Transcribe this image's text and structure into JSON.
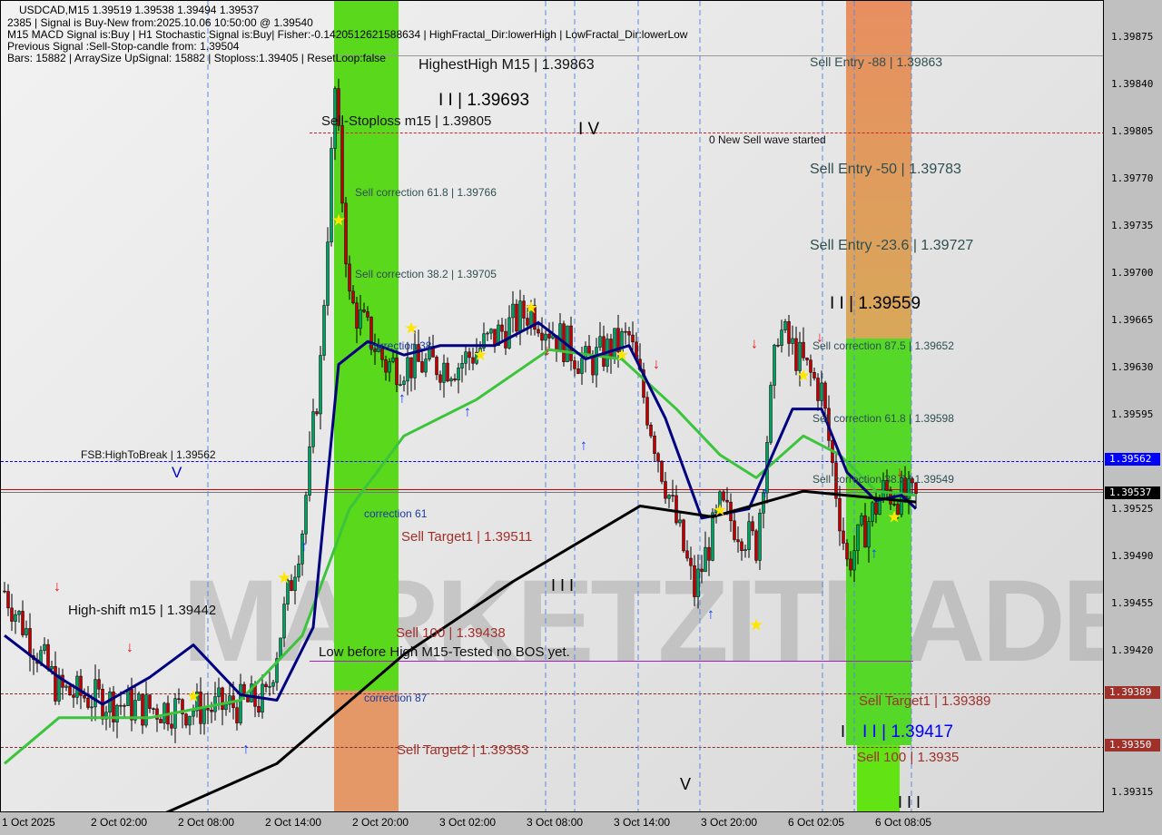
{
  "header": {
    "symbol_line": "USDCAD,M15  1.39519 1.39538 1.39494 1.39537",
    "signal_line": "2385 | Signal is Buy-New from:2025.10.06 10:50:00 @ 1.39540",
    "indicator_line": "M15 MACD Signal is:Buy | H1 Stochastic Signal is:Buy| Fisher:-0.1420512621588634 | HighFractal_Dir:lowerHigh | LowFractal_Dir:lowerLow",
    "previous_line": "Previous Signal :Sell-Stop-candle from: 1.39504",
    "bars_line": "Bars: 15882 | ArraySize UpSignal: 15882 | Stoploss:1.39405 | ResetLoop:false"
  },
  "watermark": "MARKETZITRADE",
  "labels": {
    "highest_high": "HighestHigh   M15 | 1.39863",
    "sell_stoploss": "Sell-Stoploss m15 | 1.39805",
    "wave_1_39693": "I I | 1.39693",
    "wave_iv": "I V",
    "new_sell_wave": "0 New Sell wave started",
    "sell_corr_618_top": "Sell correction 61.8 | 1.39766",
    "sell_corr_382_top": "Sell correction 38.2 | 1.39705",
    "correction_38": "correction 38",
    "fsb": "FSB:HighToBreak | 1.39562",
    "wave_v_left": "V",
    "correction_61": "correction 61",
    "sell_target1_mid": "Sell Target1 | 1.39511",
    "wave_iii_mid": "I I I",
    "high_shift": "High-shift m15 | 1.39442",
    "sell_100_mid": "Sell 100 | 1.39438",
    "low_before_high": "Low before High  M15-Tested no BOS yet.",
    "correction_87": "correction 87",
    "sell_target2": "Sell Target2 | 1.39353",
    "wave_v_bottom": "V",
    "sell_entry_88": "Sell Entry -88 | 1.39863",
    "sell_entry_50": "Sell Entry -50 | 1.39783",
    "sell_entry_236": "Sell Entry -23.6 | 1.39727",
    "wave_ii_1_39559": "I I | 1.39559",
    "sell_corr_875": "Sell correction 87.5 | 1.39652",
    "sell_corr_618_right": "Sell correction 61.8 | 1.39598",
    "sell_corr_382_right": "Sell correction 38.2 | 1.39549",
    "sell_target1_right": "Sell Target1 | 1.39389",
    "wave_i": "I",
    "wave_iii_1_39417": "I I | 1.39417",
    "sell_100_right": "Sell 100 | 1.3935",
    "wave_iii_bottom": "I I I"
  },
  "chart_data": {
    "type": "candlestick",
    "symbol": "USDCAD",
    "timeframe": "M15",
    "ylim": [
      1.393,
      1.399
    ],
    "y_ticks": [
      "1.39875",
      "1.39840",
      "1.39805",
      "1.39770",
      "1.39735",
      "1.39700",
      "1.39665",
      "1.39630",
      "1.39595",
      "1.39525",
      "1.39490",
      "1.39455",
      "1.39420",
      "1.39315"
    ],
    "x_ticks": [
      "1 Oct 2025",
      "2 Oct 02:00",
      "2 Oct 08:00",
      "2 Oct 14:00",
      "2 Oct 20:00",
      "3 Oct 02:00",
      "3 Oct 08:00",
      "3 Oct 14:00",
      "3 Oct 20:00",
      "6 Oct 02:05",
      "6 Oct 08:05"
    ],
    "price_tags": [
      {
        "value": "1.39562",
        "color": "#0000ff"
      },
      {
        "value": "1.39537",
        "color": "#000000"
      },
      {
        "value": "1.39389",
        "color": "#a0302a"
      },
      {
        "value": "1.39350",
        "color": "#a0302a"
      }
    ],
    "price_path": [
      {
        "bar": 0,
        "p": 1.39465
      },
      {
        "bar": 15,
        "p": 1.39391
      },
      {
        "bar": 38,
        "p": 1.39378
      },
      {
        "bar": 58,
        "p": 1.39378
      },
      {
        "bar": 72,
        "p": 1.39384
      },
      {
        "bar": 82,
        "p": 1.39512
      },
      {
        "bar": 87,
        "p": 1.39633
      },
      {
        "bar": 91,
        "p": 1.39835
      },
      {
        "bar": 95,
        "p": 1.3968
      },
      {
        "bar": 105,
        "p": 1.39633
      },
      {
        "bar": 125,
        "p": 1.39633
      },
      {
        "bar": 145,
        "p": 1.39674
      },
      {
        "bar": 160,
        "p": 1.39633
      },
      {
        "bar": 172,
        "p": 1.39653
      },
      {
        "bar": 180,
        "p": 1.39566
      },
      {
        "bar": 190,
        "p": 1.39465
      },
      {
        "bar": 197,
        "p": 1.39526
      },
      {
        "bar": 207,
        "p": 1.39499
      },
      {
        "bar": 213,
        "p": 1.3966
      },
      {
        "bar": 225,
        "p": 1.39613
      },
      {
        "bar": 232,
        "p": 1.39485
      },
      {
        "bar": 242,
        "p": 1.39539
      },
      {
        "bar": 251,
        "p": 1.39532
      }
    ],
    "ma_black": [
      {
        "bar": 44,
        "p": 1.393
      },
      {
        "bar": 75,
        "p": 1.39337
      },
      {
        "bar": 110,
        "p": 1.39418
      },
      {
        "bar": 140,
        "p": 1.39472
      },
      {
        "bar": 175,
        "p": 1.39528
      },
      {
        "bar": 195,
        "p": 1.3952
      },
      {
        "bar": 220,
        "p": 1.39539
      },
      {
        "bar": 251,
        "p": 1.39531
      }
    ],
    "ma_green": [
      {
        "bar": 0,
        "p": 1.39337
      },
      {
        "bar": 15,
        "p": 1.39371
      },
      {
        "bar": 40,
        "p": 1.39371
      },
      {
        "bar": 65,
        "p": 1.39384
      },
      {
        "bar": 82,
        "p": 1.39432
      },
      {
        "bar": 95,
        "p": 1.39526
      },
      {
        "bar": 110,
        "p": 1.3958
      },
      {
        "bar": 130,
        "p": 1.39607
      },
      {
        "bar": 150,
        "p": 1.39644
      },
      {
        "bar": 170,
        "p": 1.39637
      },
      {
        "bar": 185,
        "p": 1.396
      },
      {
        "bar": 197,
        "p": 1.39566
      },
      {
        "bar": 207,
        "p": 1.39549
      },
      {
        "bar": 220,
        "p": 1.3958
      },
      {
        "bar": 230,
        "p": 1.39566
      },
      {
        "bar": 240,
        "p": 1.39539
      },
      {
        "bar": 251,
        "p": 1.39536
      }
    ],
    "ma_navy": [
      {
        "bar": 0,
        "p": 1.39432
      },
      {
        "bar": 15,
        "p": 1.39401
      },
      {
        "bar": 27,
        "p": 1.39381
      },
      {
        "bar": 40,
        "p": 1.39401
      },
      {
        "bar": 52,
        "p": 1.39425
      },
      {
        "bar": 65,
        "p": 1.39388
      },
      {
        "bar": 75,
        "p": 1.39384
      },
      {
        "bar": 85,
        "p": 1.39438
      },
      {
        "bar": 92,
        "p": 1.39633
      },
      {
        "bar": 100,
        "p": 1.3965
      },
      {
        "bar": 110,
        "p": 1.3964
      },
      {
        "bar": 120,
        "p": 1.39647
      },
      {
        "bar": 135,
        "p": 1.39647
      },
      {
        "bar": 147,
        "p": 1.39664
      },
      {
        "bar": 160,
        "p": 1.39637
      },
      {
        "bar": 172,
        "p": 1.39647
      },
      {
        "bar": 182,
        "p": 1.39593
      },
      {
        "bar": 192,
        "p": 1.39519
      },
      {
        "bar": 205,
        "p": 1.39526
      },
      {
        "bar": 217,
        "p": 1.396
      },
      {
        "bar": 225,
        "p": 1.396
      },
      {
        "bar": 232,
        "p": 1.39553
      },
      {
        "bar": 240,
        "p": 1.39532
      },
      {
        "bar": 247,
        "p": 1.39536
      },
      {
        "bar": 251,
        "p": 1.39526
      }
    ],
    "buy_arrows": [
      {
        "bar": 83,
        "p": 1.395
      },
      {
        "bar": 67,
        "p": 1.3935
      },
      {
        "bar": 110,
        "p": 1.3961
      },
      {
        "bar": 128,
        "p": 1.396
      },
      {
        "bar": 160,
        "p": 1.39575
      },
      {
        "bar": 195,
        "p": 1.3945
      },
      {
        "bar": 210,
        "p": 1.3954
      },
      {
        "bar": 240,
        "p": 1.39495
      }
    ],
    "sell_arrows": [
      {
        "bar": 15,
        "p": 1.39465
      },
      {
        "bar": 35,
        "p": 1.3942
      },
      {
        "bar": 150,
        "p": 1.3964
      },
      {
        "bar": 180,
        "p": 1.3963
      },
      {
        "bar": 207,
        "p": 1.39645
      },
      {
        "bar": 225,
        "p": 1.3965
      },
      {
        "bar": 247,
        "p": 1.3955
      }
    ],
    "stars": [
      {
        "bar": 92,
        "p": 1.3974
      },
      {
        "bar": 77,
        "p": 1.39475
      },
      {
        "bar": 52,
        "p": 1.39387
      },
      {
        "bar": 112,
        "p": 1.3966
      },
      {
        "bar": 131,
        "p": 1.3964
      },
      {
        "bar": 145,
        "p": 1.39675
      },
      {
        "bar": 170,
        "p": 1.3964
      },
      {
        "bar": 197,
        "p": 1.39525
      },
      {
        "bar": 207,
        "p": 1.3944
      },
      {
        "bar": 220,
        "p": 1.39625
      },
      {
        "bar": 245,
        "p": 1.3952
      }
    ]
  },
  "colors": {
    "buy_zone": "#5ee01a",
    "sell_zone": "#e59a6a",
    "ma_black": "#000000",
    "ma_green": "#3cc43c",
    "ma_navy": "#000080",
    "candle_up": "#00a060",
    "candle_down": "#c00000",
    "fsb_line": "#0000ff"
  }
}
